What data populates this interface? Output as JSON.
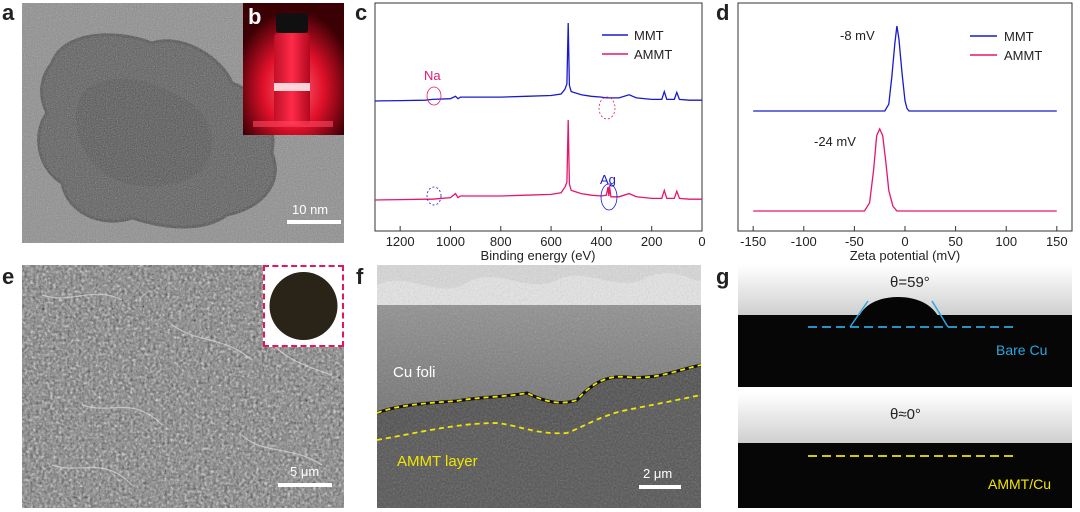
{
  "panel_letters": {
    "a": "a",
    "b": "b",
    "c": "c",
    "d": "d",
    "e": "e",
    "f": "f",
    "g": "g"
  },
  "panel_a": {
    "scale_label": "10 nm"
  },
  "panel_e": {
    "scale_label": "5 μm"
  },
  "panel_f": {
    "scale_label": "2 μm",
    "cu_label": "Cu foli",
    "layer_label": "AMMT layer",
    "outline_color": "#f2e600"
  },
  "panel_g": {
    "angle_top": "θ=59°",
    "label_top": "Bare Cu",
    "angle_bottom": "θ≈0°",
    "label_bottom": "AMMT/Cu",
    "top_line_color": "#2aa8e0",
    "bottom_line_color": "#f2e600"
  },
  "colors": {
    "mmt": "#1a1acc",
    "ammt": "#e6166b"
  },
  "chart_data": [
    {
      "type": "line",
      "title": "",
      "xlabel": "Binding energy (eV)",
      "ylabel": "",
      "x_reversed": true,
      "xlim": [
        1300,
        0
      ],
      "xticks": [
        "1200",
        "1000",
        "800",
        "600",
        "400",
        "200",
        "0"
      ],
      "xtick_values": [
        1200,
        1000,
        800,
        600,
        400,
        200,
        0
      ],
      "legend": [
        "MMT",
        "AMMT"
      ],
      "legend_position": "top-right",
      "annotations": [
        {
          "text": "Na",
          "series": "MMT",
          "x": 1072
        },
        {
          "text": "Ag",
          "series": "AMMT",
          "x": 368
        }
      ],
      "series": [
        {
          "name": "MMT",
          "x": [
            1300,
            1200,
            1100,
            1072,
            1000,
            980,
            970,
            960,
            900,
            800,
            700,
            600,
            560,
            545,
            537,
            532,
            527,
            520,
            480,
            440,
            400,
            380,
            360,
            330,
            290,
            260,
            200,
            160,
            150,
            140,
            110,
            100,
            90,
            50,
            0
          ],
          "y": [
            0,
            0.5,
            1,
            2,
            3,
            6,
            3,
            5,
            5,
            5,
            6,
            7,
            9,
            15,
            22,
            100,
            20,
            12,
            8,
            6,
            5,
            4,
            4,
            4,
            8,
            4,
            2,
            2,
            12,
            2,
            2,
            11,
            2,
            1,
            1
          ]
        },
        {
          "name": "AMMT",
          "x": [
            1300,
            1200,
            1100,
            1072,
            1000,
            980,
            970,
            960,
            900,
            800,
            700,
            600,
            560,
            545,
            537,
            532,
            527,
            520,
            480,
            440,
            400,
            380,
            374,
            370,
            368,
            362,
            350,
            330,
            290,
            260,
            200,
            160,
            150,
            140,
            110,
            100,
            90,
            50,
            0
          ],
          "y": [
            0,
            0.5,
            1,
            1,
            3,
            8,
            3,
            5,
            5,
            5,
            6,
            7,
            9,
            16,
            22,
            100,
            20,
            12,
            8,
            6,
            5,
            6,
            16,
            5,
            18,
            4,
            4,
            4,
            8,
            4,
            2,
            2,
            12,
            2,
            2,
            11,
            2,
            1,
            1
          ]
        }
      ]
    },
    {
      "type": "line",
      "title": "",
      "xlabel": "Zeta potential (mV)",
      "ylabel": "",
      "xlim": [
        -165,
        165
      ],
      "xticks": [
        "-150",
        "-100",
        "-50",
        "0",
        "50",
        "100",
        "150"
      ],
      "xtick_values": [
        -150,
        -100,
        -50,
        0,
        50,
        100,
        150
      ],
      "legend": [
        "MMT",
        "AMMT"
      ],
      "legend_position": "top-right",
      "annotations": [
        {
          "text": "-8 mV",
          "series": "MMT"
        },
        {
          "text": "-24 mV",
          "series": "AMMT"
        }
      ],
      "series": [
        {
          "name": "MMT",
          "x": [
            -150,
            -20,
            -16,
            -13,
            -10,
            -8,
            -6,
            -3,
            0,
            2,
            4,
            150
          ],
          "y": [
            0,
            0,
            8,
            40,
            80,
            100,
            85,
            45,
            12,
            3,
            0,
            0
          ]
        },
        {
          "name": "AMMT",
          "x": [
            -150,
            -40,
            -35,
            -31,
            -28,
            -25,
            -22,
            -19,
            -16,
            -12,
            -8,
            150
          ],
          "y": [
            0,
            0,
            10,
            50,
            92,
            100,
            92,
            60,
            25,
            6,
            0,
            0
          ]
        }
      ]
    }
  ]
}
